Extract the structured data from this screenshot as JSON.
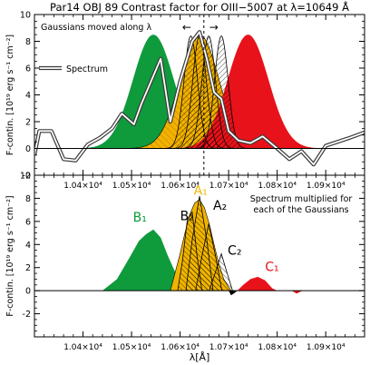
{
  "chart_data": {
    "type": "area",
    "title": "Par14 OBJ 89 Contrast factor for OIII−5007 at λ=10649 Å",
    "vline_x": 10649,
    "xlabel": "λ[Å]",
    "xlim": [
      10300,
      10980
    ],
    "x_ticks": [
      10400,
      10500,
      10600,
      10700,
      10800,
      10900
    ],
    "x_tick_labels": [
      "1.04×10⁴",
      "1.05×10⁴",
      "1.06×10⁴",
      "1.07×10⁴",
      "1.08×10⁴",
      "1.09×10⁴"
    ],
    "colors": {
      "green": "#0f9a3c",
      "gold": "#f0b400",
      "red": "#e8121a",
      "hatch": "#000000"
    },
    "panels": [
      {
        "ylabel": "F-contin. [10¹⁹ erg s⁻¹ cm⁻²]",
        "ylim": [
          -2,
          10
        ],
        "y_ticks": [
          -2,
          0,
          2,
          4,
          6,
          8,
          10
        ],
        "annotation": "Gaussians moved along λ",
        "arrows": "← →",
        "legend": {
          "label": "Spectrum",
          "placement": "left"
        },
        "gaussians": [
          {
            "id": "B",
            "color": "green",
            "center": 10545,
            "sigma": 42,
            "peak": 8.5,
            "fill": "solid"
          },
          {
            "id": "A",
            "color": "gold",
            "center": 10640,
            "sigma": 40,
            "peak": 8.5,
            "fill": "solid+hatch"
          },
          {
            "id": "C",
            "color": "red",
            "center": 10740,
            "sigma": 42,
            "peak": 8.5,
            "fill": "solid"
          },
          {
            "id": "h1",
            "color": "hatch",
            "center": 10622,
            "sigma": 14,
            "peak": 8.4,
            "fill": "hatch"
          },
          {
            "id": "h2",
            "color": "hatch",
            "center": 10640,
            "sigma": 14,
            "peak": 8.4,
            "fill": "hatch"
          },
          {
            "id": "h3",
            "color": "hatch",
            "center": 10659,
            "sigma": 14,
            "peak": 8.4,
            "fill": "hatch"
          },
          {
            "id": "h4",
            "color": "hatch",
            "center": 10685,
            "sigma": 14,
            "peak": 8.4,
            "fill": "hatch"
          }
        ],
        "series": [
          {
            "name": "Spectrum",
            "x": [
              10300,
              10310,
              10335,
              10360,
              10385,
              10410,
              10435,
              10460,
              10480,
              10505,
              10520,
              10540,
              10560,
              10580,
              10600,
              10615,
              10625,
              10640,
              10655,
              10670,
              10685,
              10700,
              10720,
              10745,
              10770,
              10800,
              10825,
              10850,
              10875,
              10900,
              10925,
              10950,
              10980
            ],
            "y": [
              -0.5,
              1.3,
              1.3,
              -0.8,
              -0.9,
              0.3,
              0.8,
              1.5,
              2.6,
              1.8,
              3.3,
              5.0,
              6.7,
              2.0,
              5.0,
              6.8,
              8.0,
              8.7,
              6.7,
              4.2,
              3.7,
              1.3,
              0.6,
              0.4,
              0.9,
              0.0,
              -0.8,
              -0.2,
              -1.2,
              0.2,
              0.5,
              0.8,
              1.2
            ]
          }
        ]
      },
      {
        "ylabel": "F-contin. [10¹⁹ erg s⁻¹ cm⁻²]",
        "ylim": [
          -4,
          10
        ],
        "y_ticks": [
          -2,
          0,
          2,
          4,
          6,
          8,
          10
        ],
        "annotation": "Spectrum multiplied for each of the Gaussians",
        "annotation_lines": [
          "Spectrum multiplied for",
          "each of the Gaussians"
        ],
        "labels": [
          {
            "text": "A₁",
            "x": 10628,
            "y": 8.3,
            "color": "gold"
          },
          {
            "text": "A₂",
            "x": 10668,
            "y": 7.0,
            "color": "black"
          },
          {
            "text": "B₁",
            "x": 10503,
            "y": 6.0,
            "color": "green"
          },
          {
            "text": "B₂",
            "x": 10600,
            "y": 6.1,
            "color": "black"
          },
          {
            "text": "C₂",
            "x": 10698,
            "y": 3.1,
            "color": "black"
          },
          {
            "text": "C₁",
            "x": 10775,
            "y": 1.7,
            "color": "red"
          }
        ],
        "products": [
          {
            "id": "B1",
            "color": "green",
            "x": [
              10440,
              10470,
              10495,
              10515,
              10530,
              10545,
              10560,
              10575,
              10590,
              10600,
              10615,
              10630
            ],
            "y": [
              0,
              1.0,
              2.8,
              4.3,
              4.9,
              5.3,
              4.6,
              3.0,
              1.6,
              2.6,
              2.0,
              0
            ]
          },
          {
            "id": "A1",
            "color": "gold",
            "x": [
              10580,
              10590,
              10600,
              10610,
              10620,
              10630,
              10640,
              10650,
              10660,
              10670,
              10680,
              10690,
              10700,
              10705
            ],
            "y": [
              0,
              1.6,
              3.2,
              5.0,
              6.6,
              7.6,
              7.9,
              7.2,
              5.8,
              4.0,
              2.3,
              1.0,
              0.3,
              0
            ]
          },
          {
            "id": "C1",
            "color": "red",
            "x": [
              10718,
              10730,
              10745,
              10760,
              10775,
              10790,
              10800
            ],
            "y": [
              0,
              0.5,
              1.0,
              1.2,
              0.9,
              0.2,
              0
            ]
          },
          {
            "id": "B2",
            "color": "hatch",
            "x": [
              10595,
              10605,
              10615,
              10625,
              10635,
              10645
            ],
            "y": [
              0,
              2.6,
              6.2,
              6.8,
              3.0,
              0
            ]
          },
          {
            "id": "A2",
            "color": "hatch",
            "x": [
              10612,
              10625,
              10640,
              10655,
              10668
            ],
            "y": [
              0,
              4.4,
              8.2,
              4.4,
              0
            ]
          },
          {
            "id": "A3",
            "color": "hatch",
            "x": [
              10632,
              10645,
              10659,
              10673,
              10686
            ],
            "y": [
              0,
              3.0,
              5.8,
              3.0,
              0
            ]
          },
          {
            "id": "C2",
            "color": "hatch",
            "x": [
              10660,
              10672,
              10685,
              10697,
              10708
            ],
            "y": [
              0,
              1.5,
              3.2,
              1.5,
              0
            ]
          }
        ],
        "dip": {
          "x": [
            10700,
            10705,
            10712,
            10718
          ],
          "y": [
            0,
            -0.4,
            -0.2,
            0
          ]
        },
        "small_dip": {
          "x": [
            10830,
            10840,
            10852
          ],
          "y": [
            0,
            -0.25,
            0
          ]
        }
      }
    ]
  }
}
